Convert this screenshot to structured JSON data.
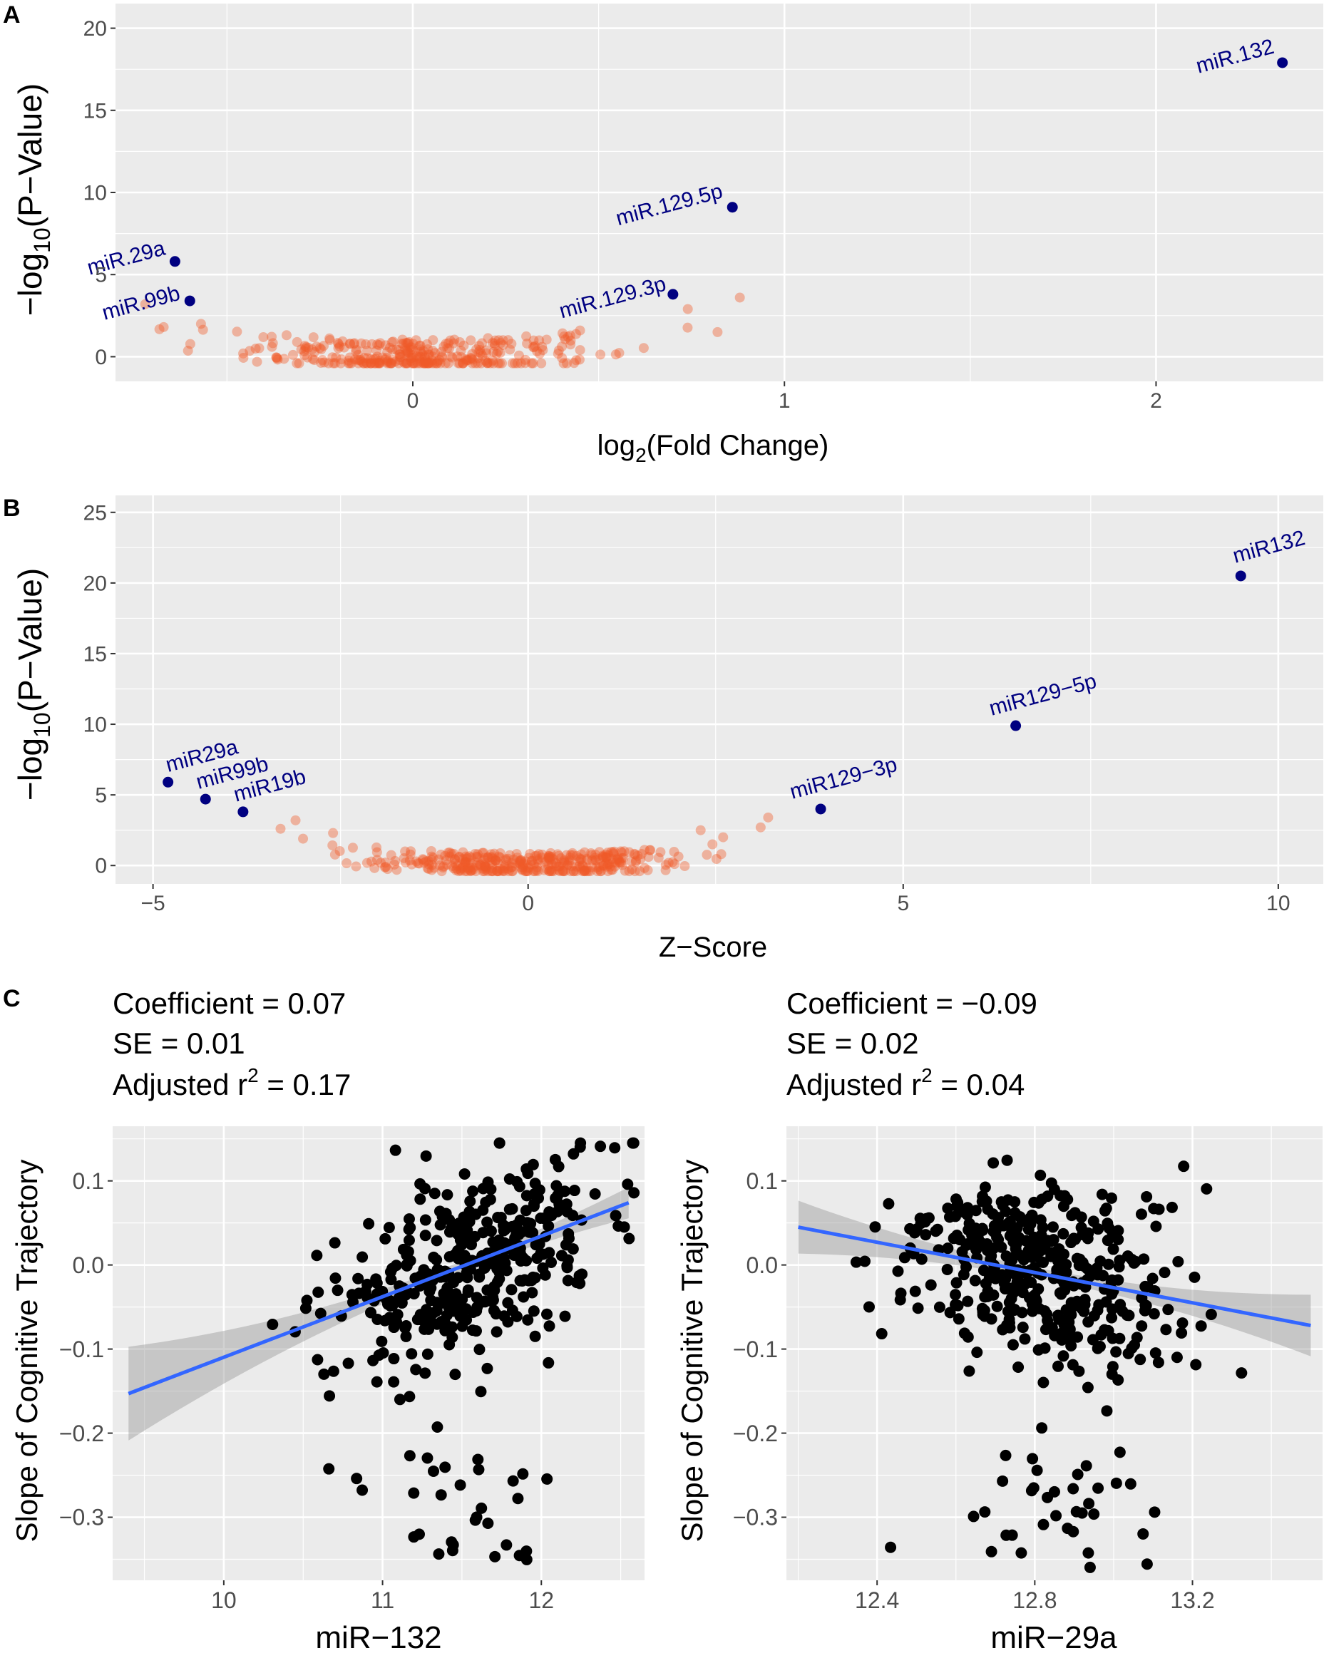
{
  "panel_labels": {
    "a": "A",
    "b": "B",
    "c": "C"
  },
  "chart_data": [
    {
      "id": "A",
      "type": "scatter",
      "title": "",
      "xlabel_pre": "log",
      "xlabel_sub": "2",
      "xlabel_post": "(Fold Change)",
      "ylabel_pre": "−log",
      "ylabel_sub": "10",
      "ylabel_post": "(P−Value)",
      "xlim": [
        -0.8,
        2.45
      ],
      "ylim": [
        -1.5,
        21.5
      ],
      "x_ticks": [
        0,
        1,
        2
      ],
      "x_tick_labels": [
        "0",
        "1",
        "2"
      ],
      "y_ticks": [
        0,
        5,
        10,
        15,
        20
      ],
      "y_tick_labels": [
        "0",
        "5",
        "10",
        "15",
        "20"
      ],
      "highlighted": [
        {
          "label": "miR.132",
          "x": 2.34,
          "y": 17.9
        },
        {
          "label": "miR.129.5p",
          "x": 0.86,
          "y": 9.1
        },
        {
          "label": "miR.29a",
          "x": -0.64,
          "y": 5.8
        },
        {
          "label": "miR.99b",
          "x": -0.6,
          "y": 3.4
        },
        {
          "label": "miR.129.3p",
          "x": 0.7,
          "y": 3.8
        }
      ]
    },
    {
      "id": "B",
      "type": "scatter",
      "title": "",
      "xlabel": "Z−Score",
      "ylabel_pre": "−log",
      "ylabel_sub": "10",
      "ylabel_post": "(P−Value)",
      "xlim": [
        -5.5,
        10.6
      ],
      "ylim": [
        -1.3,
        26.2
      ],
      "x_ticks": [
        -5,
        0,
        5,
        10
      ],
      "x_tick_labels": [
        "−5",
        "0",
        "5",
        "10"
      ],
      "y_ticks": [
        0,
        5,
        10,
        15,
        20,
        25
      ],
      "y_tick_labels": [
        "0",
        "5",
        "10",
        "15",
        "20",
        "25"
      ],
      "highlighted": [
        {
          "label": "miR132",
          "x": 9.5,
          "y": 20.5
        },
        {
          "label": "miR129−5p",
          "x": 6.5,
          "y": 9.9
        },
        {
          "label": "miR29a",
          "x": -4.8,
          "y": 5.9
        },
        {
          "label": "miR99b",
          "x": -4.3,
          "y": 4.7
        },
        {
          "label": "miR19b",
          "x": -3.8,
          "y": 3.8
        },
        {
          "label": "miR129−3p",
          "x": 3.9,
          "y": 4.0
        }
      ]
    },
    {
      "id": "C-left",
      "type": "scatter",
      "xlabel": "miR−132",
      "ylabel": "Slope of Cognitive Trajectory",
      "xlim": [
        9.3,
        12.65
      ],
      "ylim": [
        -0.375,
        0.165
      ],
      "x_ticks": [
        10,
        11,
        12
      ],
      "x_tick_labels": [
        "10",
        "11",
        "12"
      ],
      "y_ticks": [
        -0.3,
        -0.2,
        -0.1,
        0.0,
        0.1
      ],
      "y_tick_labels": [
        "−0.3",
        "−0.2",
        "−0.1",
        "0.0",
        "0.1"
      ],
      "stats": {
        "coef_label": "Coefficient =  0.07",
        "se_label": "SE =  0.01",
        "r2_pre": "Adjusted r",
        "r2_sup": "2",
        "r2_post": " = 0.17"
      },
      "fit_line": {
        "x": [
          9.4,
          12.55
        ],
        "y": [
          -0.153,
          0.074
        ]
      },
      "center": 11.5,
      "x_spread": 0.42,
      "slope": 0.07
    },
    {
      "id": "C-right",
      "type": "scatter",
      "xlabel": "miR−29a",
      "ylabel": "Slope of Cognitive Trajectory",
      "xlim": [
        12.17,
        13.53
      ],
      "ylim": [
        -0.375,
        0.165
      ],
      "x_ticks": [
        12.4,
        12.8,
        13.2
      ],
      "x_tick_labels": [
        "12.4",
        "12.8",
        "13.2"
      ],
      "y_ticks": [
        -0.3,
        -0.2,
        -0.1,
        0.0,
        0.1
      ],
      "y_tick_labels": [
        "−0.3",
        "−0.2",
        "−0.1",
        "0.0",
        "0.1"
      ],
      "stats": {
        "coef_label": "Coefficient =  −0.09",
        "se_label": "SE =  0.02",
        "r2_pre": "Adjusted r",
        "r2_sup": "2",
        "r2_post": " = 0.04"
      },
      "fit_line": {
        "x": [
          12.2,
          13.5
        ],
        "y": [
          0.045,
          -0.072
        ]
      },
      "center": 12.82,
      "x_spread": 0.17,
      "slope": -0.09
    }
  ]
}
